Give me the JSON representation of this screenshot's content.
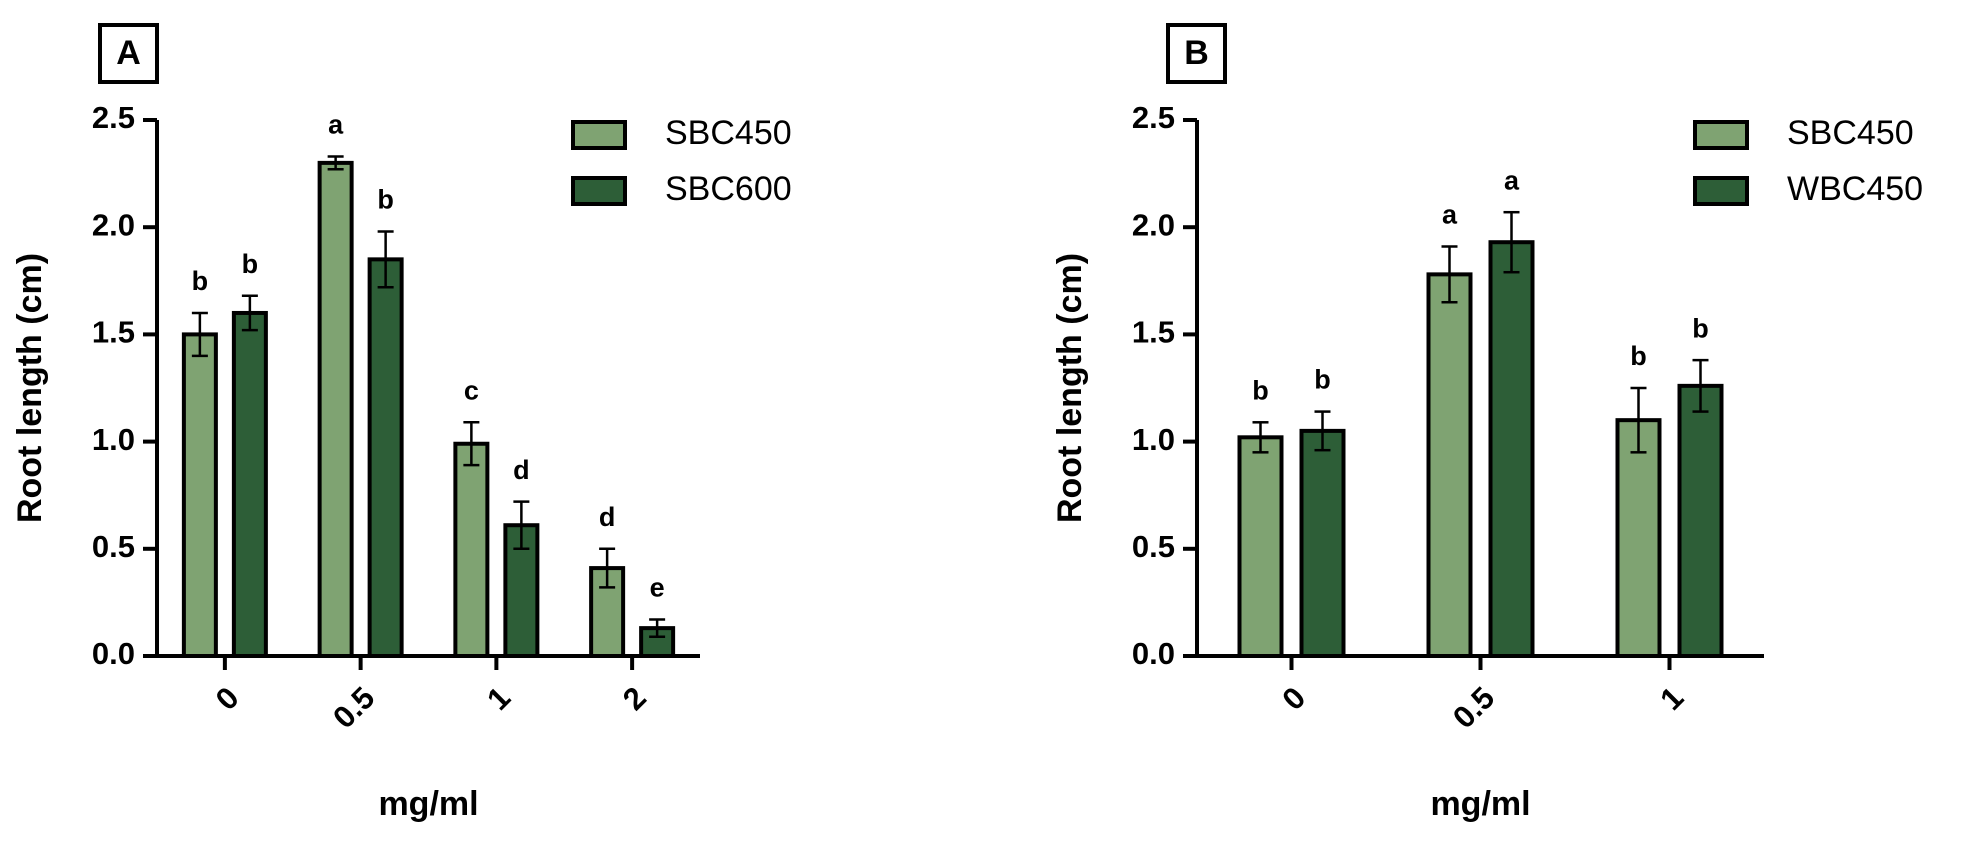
{
  "chart_data": [
    {
      "type": "bar",
      "panel": "A",
      "ylabel": "Root length (cm)",
      "xlabel": "mg/ml",
      "categories": [
        "0",
        "0.5",
        "1",
        "2"
      ],
      "series": [
        {
          "name": "SBC450",
          "color": "#7fa372",
          "values": [
            1.5,
            2.3,
            0.99,
            0.41
          ],
          "errors": [
            0.1,
            0.03,
            0.1,
            0.09
          ],
          "letters": [
            "b",
            "a",
            "c",
            "d"
          ]
        },
        {
          "name": "SBC600",
          "color": "#2d5e37",
          "values": [
            1.6,
            1.85,
            0.61,
            0.13
          ],
          "errors": [
            0.08,
            0.13,
            0.11,
            0.04
          ],
          "letters": [
            "b",
            "b",
            "d",
            "e"
          ]
        }
      ],
      "ylim": [
        0,
        2.5
      ],
      "yticks": [
        {
          "value": 0,
          "label": "0.0"
        },
        0.5,
        {
          "value": 1,
          "label": "1.0"
        },
        1.5,
        {
          "value": 2,
          "label": "2.0"
        },
        2.5
      ]
    },
    {
      "type": "bar",
      "panel": "B",
      "ylabel": "Root length (cm)",
      "xlabel": "mg/ml",
      "categories": [
        "0",
        "0.5",
        "1"
      ],
      "series": [
        {
          "name": "SBC450",
          "color": "#7fa372",
          "values": [
            1.02,
            1.78,
            1.1
          ],
          "errors": [
            0.07,
            0.13,
            0.15
          ],
          "letters": [
            "b",
            "a",
            "b"
          ]
        },
        {
          "name": "WBC450",
          "color": "#2d5e37",
          "values": [
            1.05,
            1.93,
            1.26
          ],
          "errors": [
            0.09,
            0.14,
            0.12
          ],
          "letters": [
            "b",
            "a",
            "b"
          ]
        }
      ],
      "ylim": [
        0,
        2.5
      ],
      "yticks": [
        {
          "value": 0,
          "label": "0.0"
        },
        0.5,
        {
          "value": 1,
          "label": "1.0"
        },
        1.5,
        {
          "value": 2,
          "label": "2.0"
        },
        2.5
      ]
    }
  ]
}
